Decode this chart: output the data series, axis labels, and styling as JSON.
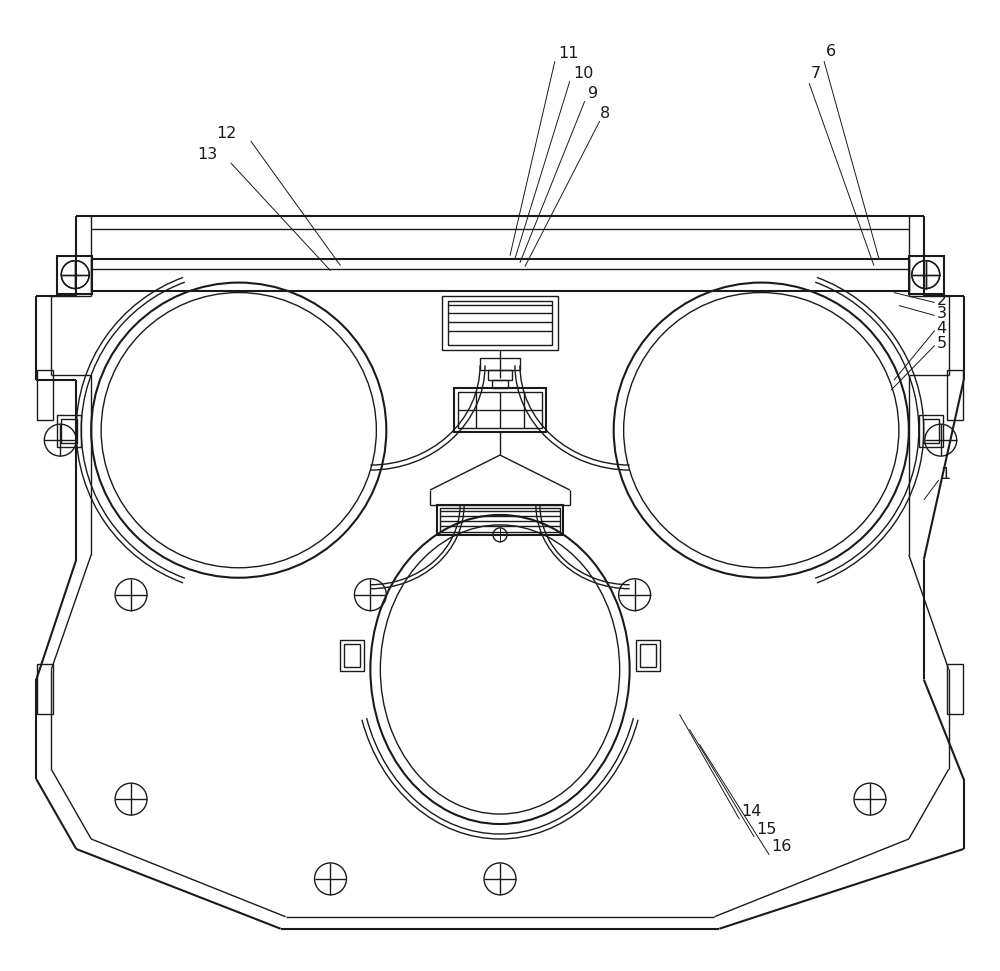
{
  "bg_color": "#ffffff",
  "line_color": "#1a1a1a",
  "lw": 1.0,
  "lw2": 1.5,
  "lw3": 0.7,
  "fig_width": 10.0,
  "fig_height": 9.71
}
